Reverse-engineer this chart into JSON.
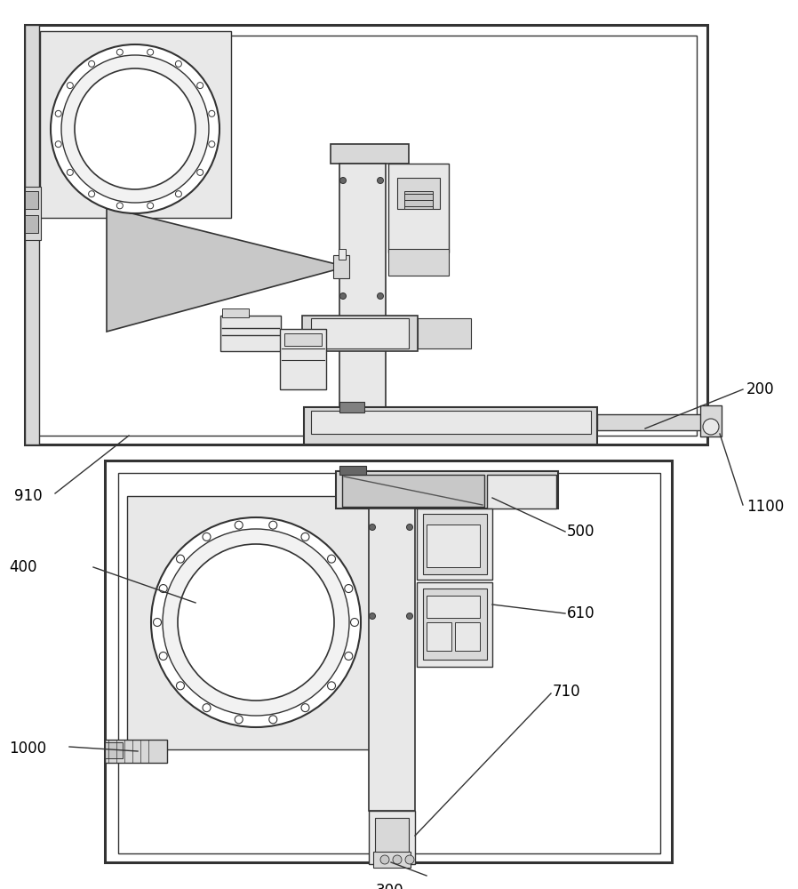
{
  "bg": "#ffffff",
  "lc": "#333333",
  "g1": "#c8c8c8",
  "g2": "#d8d8d8",
  "g3": "#e8e8e8",
  "g4": "#b8b8b8",
  "g5": "#a0a0a0",
  "figw": 8.98,
  "figh": 10.0,
  "dpi": 100
}
